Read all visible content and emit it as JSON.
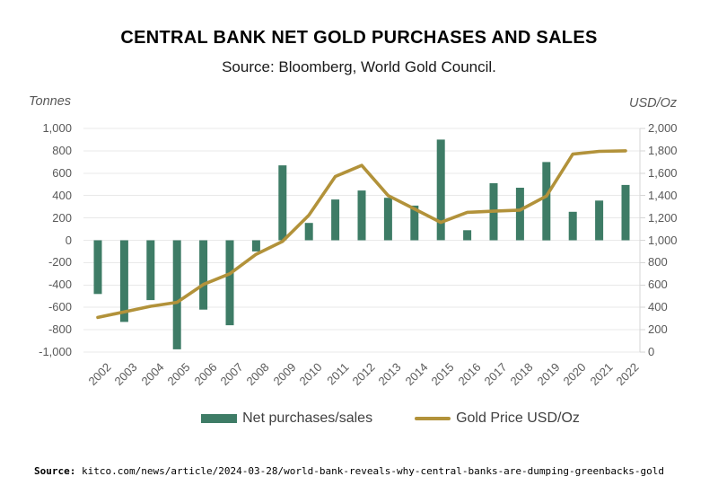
{
  "header": {
    "title": "CENTRAL BANK NET GOLD PURCHASES AND SALES",
    "subtitle": "Source: Bloomberg, World Gold Council."
  },
  "axes": {
    "left_unit": "Tonnes",
    "right_unit": "USD/Oz",
    "left_ticks": [
      "1,000",
      "800",
      "600",
      "400",
      "200",
      "0",
      "-200",
      "-400",
      "-600",
      "-800",
      "-1,000"
    ],
    "right_ticks": [
      "2,000",
      "1,800",
      "1,600",
      "1,400",
      "1,200",
      "1,000",
      "800",
      "600",
      "400",
      "200",
      "0"
    ]
  },
  "legend": {
    "bars": "Net purchases/sales",
    "line": "Gold Price USD/Oz"
  },
  "footer": {
    "label": "Source:",
    "text": "kitco.com/news/article/2024-03-28/world-bank-reveals-why-central-banks-are-dumping-greenbacks-gold"
  },
  "colors": {
    "bar": "#3e7c66",
    "line": "#b2923a",
    "grid": "#e9e9e9",
    "axis": "#d6d6d6",
    "tick_text": "#595959"
  },
  "chart_data": {
    "type": "bar",
    "title": "CENTRAL BANK NET GOLD PURCHASES AND SALES",
    "subtitle": "Source: Bloomberg, World Gold Council.",
    "categories": [
      2002,
      2003,
      2004,
      2005,
      2006,
      2007,
      2008,
      2009,
      2010,
      2011,
      2012,
      2013,
      2014,
      2015,
      2016,
      2017,
      2018,
      2019,
      2020,
      2021,
      2022
    ],
    "series": [
      {
        "name": "Net purchases/sales",
        "type": "bar",
        "axis": "left",
        "unit": "Tonnes",
        "values": [
          -480,
          -730,
          -535,
          -975,
          -620,
          -760,
          -100,
          670,
          155,
          365,
          445,
          380,
          310,
          900,
          90,
          510,
          470,
          700,
          255,
          355,
          495
        ]
      },
      {
        "name": "Gold Price USD/Oz",
        "type": "line",
        "axis": "right",
        "unit": "USD/Oz",
        "values": [
          310,
          360,
          410,
          445,
          605,
          700,
          875,
          990,
          1225,
          1570,
          1670,
          1400,
          1280,
          1160,
          1250,
          1260,
          1270,
          1395,
          1770,
          1795,
          1800
        ]
      }
    ],
    "left_axis": {
      "label": "Tonnes",
      "range": [
        -1000,
        1000
      ],
      "tick_step": 200
    },
    "right_axis": {
      "label": "USD/Oz",
      "range": [
        0,
        2000
      ],
      "tick_step": 200
    },
    "grid": "horizontal-only",
    "legend_position": "bottom"
  }
}
